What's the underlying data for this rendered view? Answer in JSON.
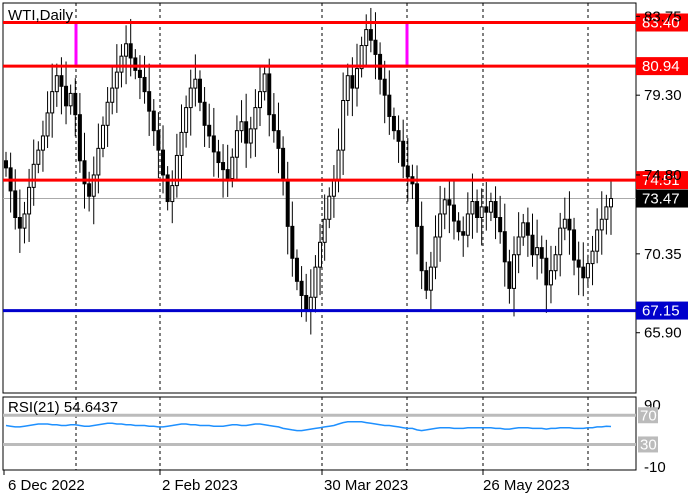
{
  "chart_data": [
    {
      "type": "candlestick",
      "symbol_label": "WTI,Daily",
      "ylim": [
        62.5,
        84.5
      ],
      "price_ticks": [
        "83.75",
        "79.30",
        "74.80",
        "70.35",
        "65.90"
      ],
      "x_labels": [
        "6 Dec 2022",
        "2 Feb 2023",
        "30 Mar 2023",
        "26 May 2023"
      ],
      "levels": [
        {
          "label": "83.40",
          "value": 83.4,
          "color": "#ff0000",
          "tag_color": "#ff0000"
        },
        {
          "label": "80.94",
          "value": 80.94,
          "color": "#ff0000",
          "tag_color": "#ff0000"
        },
        {
          "label": "74.51",
          "value": 74.51,
          "color": "#ff0000",
          "tag_color": "#ff0000"
        },
        {
          "label": "67.15",
          "value": 67.15,
          "color": "#0000cc",
          "tag_color": "#0000cc"
        }
      ],
      "current_price": {
        "label": "73.47",
        "value": 73.47,
        "tag_color": "#000000"
      },
      "highlight_box": {
        "price_top": 83.4,
        "price_bottom": 80.94,
        "color": "#ff00ff"
      },
      "closes": [
        75.2,
        73.9,
        72.4,
        71.8,
        72.6,
        74.1,
        75.4,
        76.2,
        77.0,
        78.3,
        79.5,
        80.4,
        79.8,
        78.7,
        79.4,
        78.2,
        75.6,
        74.3,
        73.6,
        74.8,
        76.3,
        77.6,
        78.9,
        79.7,
        80.6,
        81.5,
        82.2,
        81.4,
        80.7,
        80.3,
        79.5,
        78.4,
        77.3,
        76.2,
        74.8,
        73.3,
        74.2,
        75.9,
        77.2,
        78.6,
        79.7,
        80.2,
        78.9,
        77.6,
        77.0,
        76.1,
        75.5,
        75.1,
        74.6,
        75.8,
        77.3,
        77.8,
        76.6,
        77.4,
        78.6,
        79.5,
        80.5,
        78.2,
        77.3,
        76.3,
        74.5,
        71.9,
        70.1,
        68.8,
        68.0,
        67.2,
        67.9,
        69.6,
        71.0,
        72.3,
        73.6,
        74.5,
        76.2,
        79.0,
        80.4,
        79.7,
        80.8,
        82.1,
        83.0,
        82.4,
        81.6,
        80.2,
        79.3,
        78.1,
        77.3,
        76.7,
        75.3,
        74.7,
        74.3,
        71.9,
        69.4,
        68.3,
        69.6,
        71.3,
        72.6,
        73.4,
        73.1,
        72.2,
        71.6,
        71.4,
        72.6,
        73.3,
        72.4,
        73.0,
        72.7,
        73.3,
        72.4,
        71.6,
        69.9,
        68.4,
        70.3,
        71.3,
        72.1,
        71.4,
        70.3,
        70.7,
        70.1,
        68.6,
        69.4,
        70.3,
        71.8,
        72.3,
        71.7,
        70.0,
        69.6,
        69.0,
        69.8,
        70.5,
        71.7,
        72.3,
        73.0,
        73.47
      ],
      "rsi": {
        "label": "RSI(21) 54.6437",
        "levels": [
          "70",
          "30"
        ],
        "scale_top": "90",
        "scale_bottom": "-10",
        "values": [
          56,
          55,
          54,
          54,
          55,
          56,
          57,
          58,
          58,
          58,
          57,
          57,
          56,
          56,
          57,
          57,
          56,
          55,
          55,
          56,
          57,
          58,
          59,
          59,
          58,
          58,
          57,
          57,
          56,
          56,
          56,
          55,
          55,
          54,
          54,
          55,
          56,
          57,
          58,
          58,
          57,
          57,
          56,
          56,
          56,
          55,
          55,
          55,
          56,
          57,
          57,
          56,
          56,
          57,
          58,
          58,
          57,
          56,
          55,
          54,
          52,
          51,
          50,
          49,
          49,
          50,
          51,
          52,
          53,
          54,
          55,
          56,
          58,
          60,
          61,
          61,
          61,
          61,
          60,
          59,
          58,
          57,
          56,
          56,
          55,
          54,
          53,
          52,
          52,
          50,
          49,
          50,
          51,
          52,
          53,
          53,
          53,
          52,
          52,
          52,
          53,
          53,
          53,
          53,
          53,
          53,
          52,
          52,
          51,
          51,
          52,
          53,
          53,
          53,
          52,
          52,
          52,
          51,
          52,
          52,
          53,
          53,
          53,
          52,
          52,
          52,
          53,
          53,
          54,
          54,
          55,
          54.6
        ]
      }
    }
  ]
}
